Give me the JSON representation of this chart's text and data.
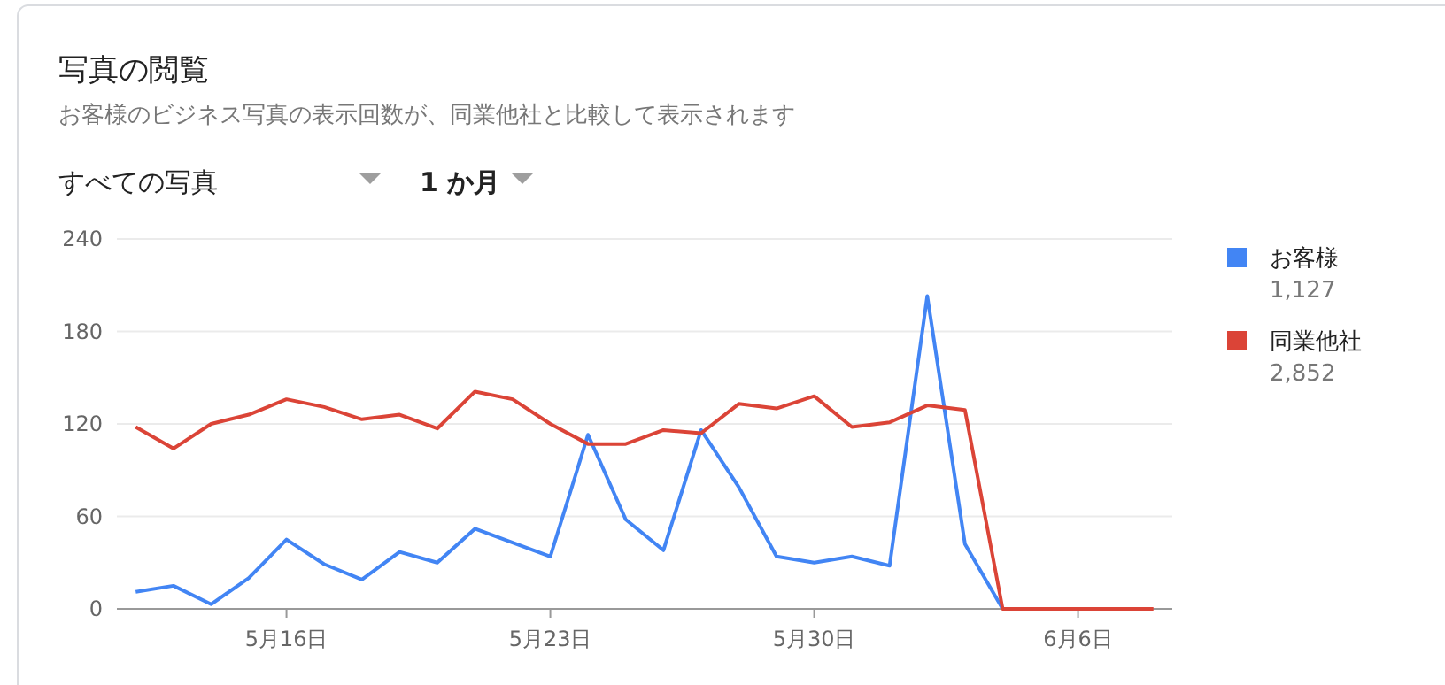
{
  "chart_data": {
    "type": "line",
    "title": "写真の閲覧",
    "subtitle": "お客様のビジネス写真の表示回数が、同業他社と比較して表示されます",
    "annotations": [
      "すべての写真",
      "1 か月",
      "1,127",
      "2,852"
    ],
    "x": [
      "--05-12",
      "--05-13",
      "--05-14",
      "--05-15",
      "--05-16",
      "--05-17",
      "--05-18",
      "--05-19",
      "--05-20",
      "--05-21",
      "--05-22",
      "--05-23",
      "--05-24",
      "--05-25",
      "--05-26",
      "--05-27",
      "--05-28",
      "--05-29",
      "--05-30",
      "--05-31",
      "--06-01",
      "--06-02",
      "--06-03",
      "--06-04",
      "--06-05",
      "--06-06",
      "--06-07",
      "--06-08"
    ],
    "series": [
      {
        "name": "お客様",
        "color": "#4285f4",
        "values": [
          11,
          15,
          3,
          20,
          45,
          29,
          19,
          37,
          30,
          52,
          43,
          34,
          113,
          58,
          38,
          116,
          79,
          34,
          30,
          34,
          28,
          203,
          42,
          0,
          null,
          null,
          null,
          null
        ]
      },
      {
        "name": "同業他社",
        "color": "#db4437",
        "values": [
          118,
          104,
          120,
          126,
          136,
          131,
          123,
          126,
          117,
          141,
          136,
          120,
          107,
          107,
          116,
          114,
          133,
          130,
          138,
          118,
          121,
          132,
          129,
          0,
          0,
          0,
          0,
          0
        ]
      }
    ],
    "xlim": [
      "--05-11T12:00",
      "--06-08T12:00"
    ],
    "xticks": [
      {
        "value": "--05-16",
        "label": "5月16日"
      },
      {
        "value": "--05-23",
        "label": "5月23日"
      },
      {
        "value": "--05-30",
        "label": "5月30日"
      },
      {
        "value": "--06-06",
        "label": "6月6日"
      }
    ],
    "ylim": [
      0,
      240
    ],
    "yticks": [
      0,
      60,
      120,
      180,
      240
    ],
    "grid": "y",
    "legend": "right",
    "marker": "none",
    "line_style": "solid"
  }
}
